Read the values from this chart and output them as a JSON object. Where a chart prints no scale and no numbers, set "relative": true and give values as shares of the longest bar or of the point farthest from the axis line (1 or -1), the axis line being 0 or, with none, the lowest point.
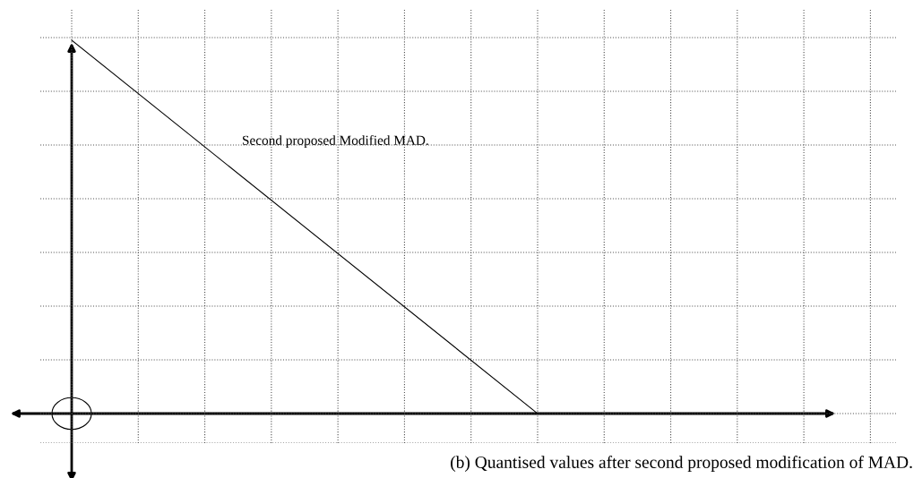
{
  "chart_data": {
    "type": "line",
    "relative": true,
    "categories": [
      null,
      null
    ],
    "series": [
      {
        "color": "#000000",
        "values": [
          1,
          0
        ]
      }
    ],
    "grid": true,
    "tick_labels": false,
    "marker": "none",
    "line_style": "solid",
    "annotations": [
      {
        "text": "Second proposed Modified MAD."
      },
      "(b) Quantised values after second proposed modification of MAD."
    ]
  }
}
